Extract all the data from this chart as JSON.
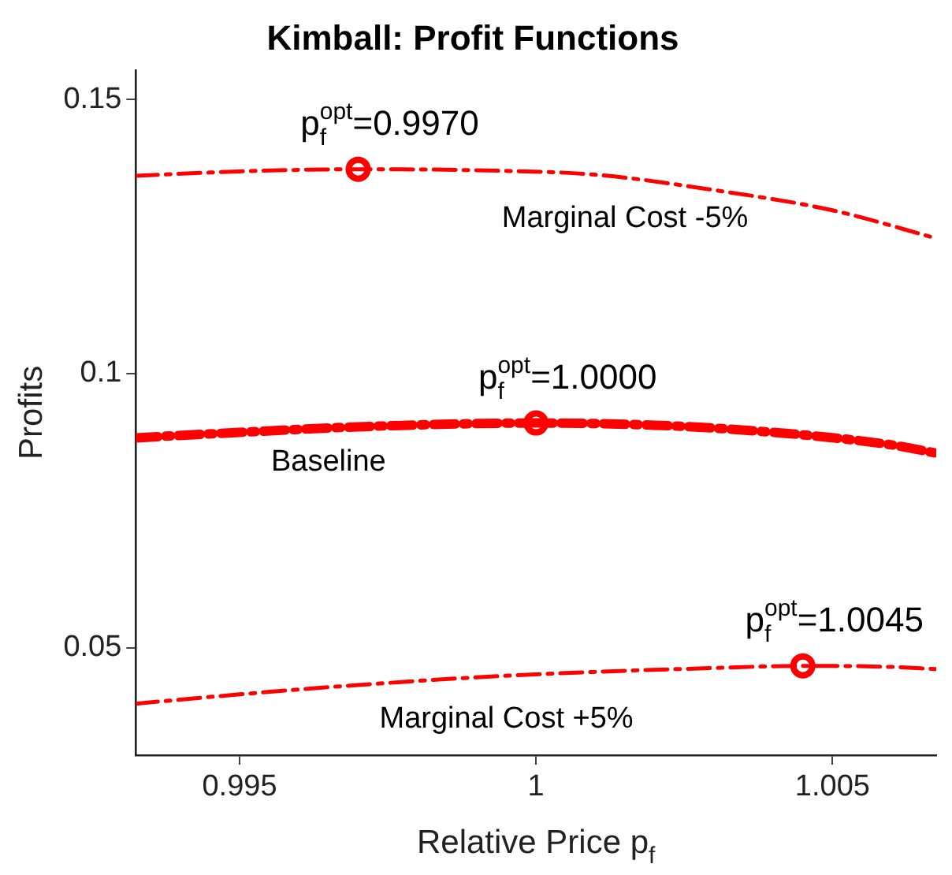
{
  "chart_data": {
    "type": "line",
    "title": "Kimball: Profit Functions",
    "xlabel": "Relative Price p$_{f}$",
    "ylabel": "Profits",
    "xlim": [
      0.99325,
      1.00675
    ],
    "xticks": [
      0.995,
      1,
      1.005
    ],
    "ylim": [
      0.0304,
      0.1554
    ],
    "yticks": [
      0.05,
      0.1,
      0.15
    ],
    "grid": false,
    "legend": false,
    "line_style": "dashed",
    "marker": "none",
    "series": [
      {
        "name": "Marginal Cost -5%",
        "color": "#ff0000",
        "x": [
          0.99325,
          0.995,
          0.997,
          0.999,
          1.001,
          1.003,
          1.005,
          1.00675
        ],
        "values": [
          0.1361,
          0.1369,
          0.1373,
          0.1371,
          0.1363,
          0.1335,
          0.1298,
          0.1247
        ]
      },
      {
        "name": "Baseline",
        "color": "#ff0000",
        "x": [
          0.99325,
          0.995,
          0.997,
          0.999,
          1.0,
          1.002,
          1.004,
          1.006,
          1.00675
        ],
        "values": [
          0.0883,
          0.0893,
          0.0903,
          0.0909,
          0.091,
          0.0906,
          0.0893,
          0.087,
          0.0855
        ]
      },
      {
        "name": "Marginal Cost +5%",
        "color": "#ff0000",
        "x": [
          0.99325,
          0.995,
          0.997,
          0.999,
          1.001,
          1.003,
          1.0045,
          1.006,
          1.00675
        ],
        "values": [
          0.0398,
          0.0415,
          0.0432,
          0.0446,
          0.0456,
          0.0463,
          0.0467,
          0.0465,
          0.0461
        ]
      },
      {
        "type": "scatter",
        "color": "#ff0000",
        "marker": "circle",
        "x": [
          0.997,
          1.0,
          1.0045
        ],
        "values": [
          0.1373,
          0.091,
          0.0467
        ]
      }
    ],
    "annotations": [
      {
        "text": "p$_{f}$$^{opt}$=0.9970",
        "x": 0.997,
        "y": 0.1373
      },
      {
        "text": "p$_{f}$$^{opt}$=1.0000",
        "x": 1.0,
        "y": 0.091
      },
      {
        "text": "p$_{f}$$^{opt}$=1.0045",
        "x": 1.0045,
        "y": 0.0467
      }
    ]
  }
}
